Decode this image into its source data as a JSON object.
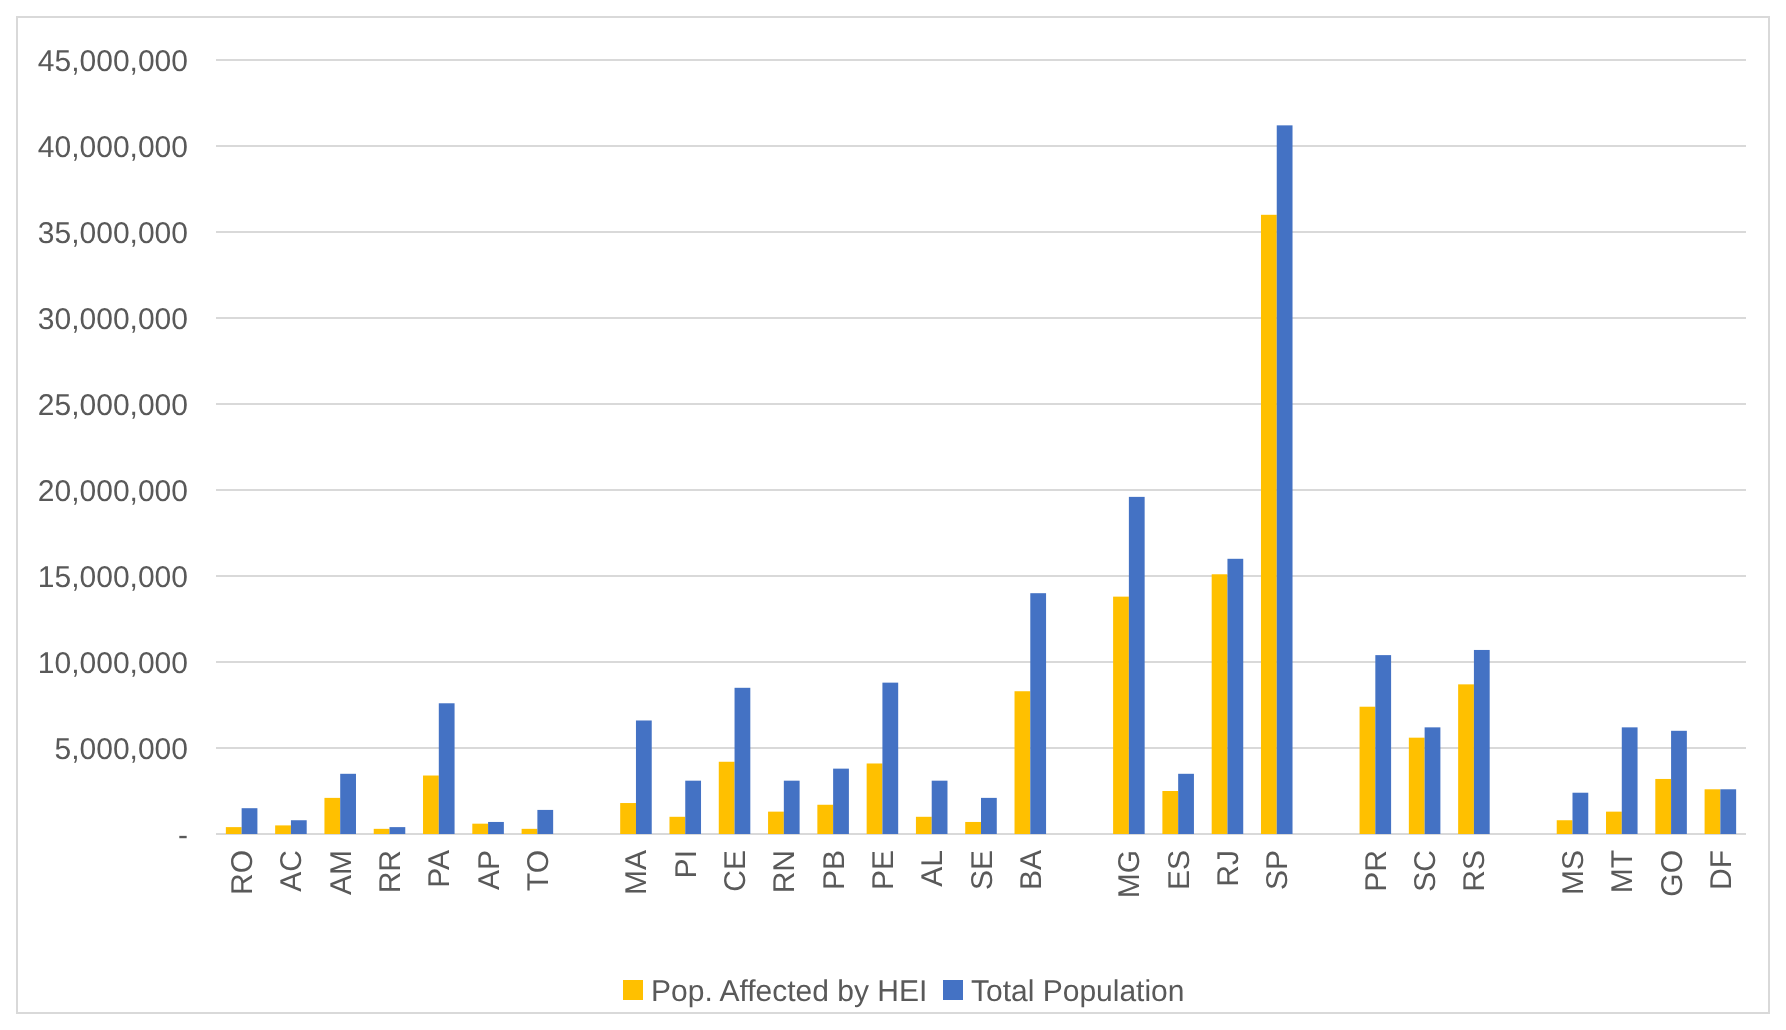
{
  "chart_data": {
    "type": "bar",
    "categories": [
      "RO",
      "AC",
      "AM",
      "RR",
      "PA",
      "AP",
      "TO",
      null,
      "MA",
      "PI",
      "CE",
      "RN",
      "PB",
      "PE",
      "AL",
      "SE",
      "BA",
      null,
      "MG",
      "ES",
      "RJ",
      "SP",
      null,
      "PR",
      "SC",
      "RS",
      null,
      "MS",
      "MT",
      "GO",
      "DF"
    ],
    "series": [
      {
        "name": "Pop. Affected by HEI",
        "color": "#ffc000",
        "values": [
          400000,
          500000,
          2100000,
          300000,
          3400000,
          600000,
          300000,
          null,
          1800000,
          1000000,
          4200000,
          1300000,
          1700000,
          4100000,
          1000000,
          700000,
          8300000,
          null,
          13800000,
          2500000,
          15100000,
          36000000,
          null,
          7400000,
          5600000,
          8700000,
          null,
          800000,
          1300000,
          3200000,
          2600000
        ]
      },
      {
        "name": "Total Population",
        "color": "#4472c4",
        "values": [
          1500000,
          800000,
          3500000,
          400000,
          7600000,
          700000,
          1400000,
          null,
          6600000,
          3100000,
          8500000,
          3100000,
          3800000,
          8800000,
          3100000,
          2100000,
          14000000,
          null,
          19600000,
          3500000,
          16000000,
          41200000,
          null,
          10400000,
          6200000,
          10700000,
          null,
          2400000,
          6200000,
          6000000,
          2600000
        ]
      }
    ],
    "ylim": [
      0,
      45000000
    ],
    "yticks": [
      {
        "value": 0,
        "label": "-"
      },
      {
        "value": 5000000,
        "label": "5,000,000"
      },
      {
        "value": 10000000,
        "label": "10,000,000"
      },
      {
        "value": 15000000,
        "label": "15,000,000"
      },
      {
        "value": 20000000,
        "label": "20,000,000"
      },
      {
        "value": 25000000,
        "label": "25,000,000"
      },
      {
        "value": 30000000,
        "label": "30,000,000"
      },
      {
        "value": 35000000,
        "label": "35,000,000"
      },
      {
        "value": 40000000,
        "label": "40,000,000"
      },
      {
        "value": 45000000,
        "label": "45,000,000"
      }
    ],
    "grid": "y",
    "legend": "bottom"
  }
}
